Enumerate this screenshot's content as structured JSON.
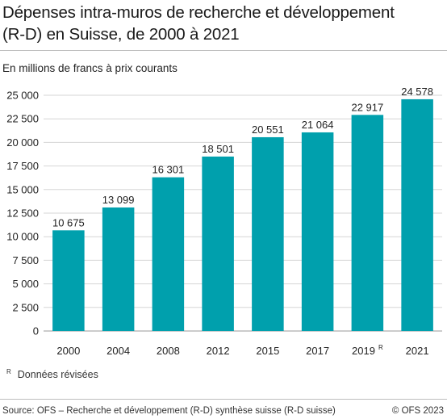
{
  "header": {
    "title_line1": "Dépenses intra-muros de recherche et développement",
    "title_line2": "(R-D) en Suisse, de 2000 à 2021",
    "unit": "En millions de francs à prix courants"
  },
  "footer": {
    "note_marker": "R",
    "note_text": "Données révisées",
    "source": "Source: OFS – Recherche et développement (R-D) synthèse suisse (R-D suisse)",
    "copyright": "© OFS 2023"
  },
  "colors": {
    "bar": "#00a0ad",
    "grid": "#d6d6d6",
    "axis": "#999999"
  },
  "chart_data": {
    "type": "bar",
    "title": "Dépenses intra-muros de recherche et développement (R-D) en Suisse, de 2000 à 2021",
    "ylabel": "En millions de francs à prix courants",
    "categories": [
      "2000",
      "2004",
      "2008",
      "2012",
      "2015",
      "2017",
      "2019",
      "2021"
    ],
    "category_superscripts": [
      "",
      "",
      "",
      "",
      "",
      "",
      "R",
      ""
    ],
    "values": [
      10675,
      13099,
      16301,
      18501,
      20551,
      21064,
      22917,
      24578
    ],
    "value_labels": [
      "10 675",
      "13 099",
      "16 301",
      "18 501",
      "20 551",
      "21 064",
      "22 917",
      "24 578"
    ],
    "ylim": [
      0,
      25000
    ],
    "yticks": [
      0,
      2500,
      5000,
      7500,
      10000,
      12500,
      15000,
      17500,
      20000,
      22500,
      25000
    ],
    "ytick_labels": [
      "0",
      "2 500",
      "5 000",
      "7 500",
      "10 000",
      "12 500",
      "15 000",
      "17 500",
      "20 000",
      "22 500",
      "25 000"
    ],
    "grid": true,
    "legend": "none"
  }
}
